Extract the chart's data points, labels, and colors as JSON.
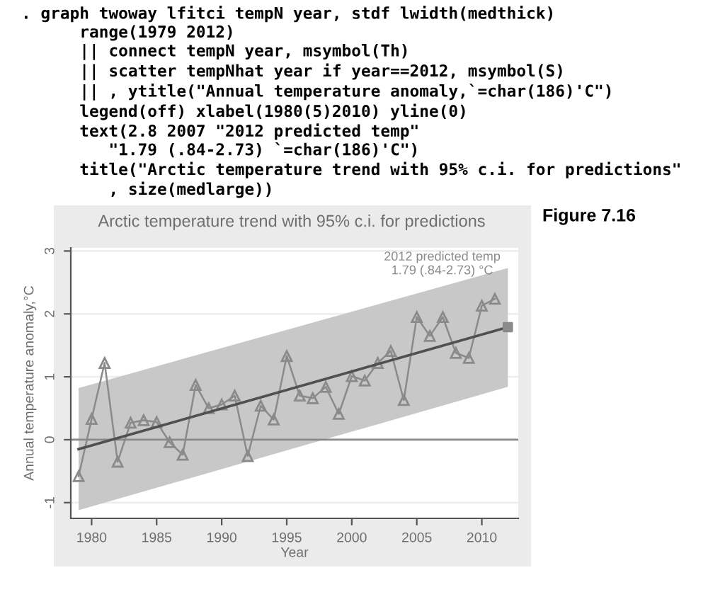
{
  "chart_data": {
    "type": "line",
    "title": "Arctic temperature trend with 95% c.i. for predictions",
    "xlabel": "Year",
    "ylabel": "Annual temperature anomaly,°C",
    "series": [
      {
        "color": "#8a8a8a",
        "marker": "triangle",
        "x": [
          1979,
          1980,
          1981,
          1982,
          1983,
          1984,
          1985,
          1986,
          1987,
          1988,
          1989,
          1990,
          1991,
          1992,
          1993,
          1994,
          1995,
          1996,
          1997,
          1998,
          1999,
          2000,
          2001,
          2002,
          2003,
          2004,
          2005,
          2006,
          2007,
          2008,
          2009,
          2010,
          2011
        ],
        "values": [
          -0.58,
          0.33,
          1.22,
          -0.35,
          0.27,
          0.31,
          0.28,
          -0.04,
          -0.24,
          0.87,
          0.5,
          0.56,
          0.7,
          -0.26,
          0.54,
          0.32,
          1.33,
          0.7,
          0.66,
          0.84,
          0.41,
          1.01,
          0.94,
          1.22,
          1.41,
          0.63,
          1.95,
          1.65,
          1.95,
          1.38,
          1.3,
          2.13,
          2.24
        ]
      },
      {
        "color": "#505050",
        "marker": "none",
        "x": [
          1979,
          2012
        ],
        "values": [
          -0.15,
          1.79
        ],
        "lower": [
          -1.12,
          0.84
        ],
        "upper": [
          0.82,
          2.73
        ]
      },
      {
        "type": "scatter",
        "color": "#8a8a8a",
        "marker": "square",
        "x": [
          2012
        ],
        "values": [
          1.79
        ]
      }
    ],
    "xlim": [
      1978.4,
      2012.8
    ],
    "ylim": [
      -1.25,
      3.05
    ],
    "xticks": [
      1980,
      1985,
      1990,
      1995,
      2000,
      2005,
      2010
    ],
    "yticks": [
      -1,
      0,
      1,
      2,
      3
    ],
    "grid": "y",
    "legend": false,
    "ref_lines": [
      {
        "axis": "y",
        "value": 0,
        "color": "#8a8a8a"
      }
    ],
    "annotations": [
      ". graph twoway lfitci tempN year, stdf lwidth(medthick)\n      range(1979 2012)\n      || connect tempN year, msymbol(Th)\n      || scatter tempNhat year if year==2012, msymbol(S)\n      || , ytitle(\"Annual temperature anomaly,`=char(186)'C\")\n      legend(off) xlabel(1980(5)2010) yline(0)\n      text(2.8 2007 \"2012 predicted temp\"\n         \"1.79 (.84-2.73) `=char(186)'C\")\n      title(\"Arctic temperature trend with 95% c.i. for predictions\"\n         , size(medlarge))",
      "Figure 7.16",
      "2012 predicted temp\n1.79 (.84-2.73) °C"
    ]
  }
}
